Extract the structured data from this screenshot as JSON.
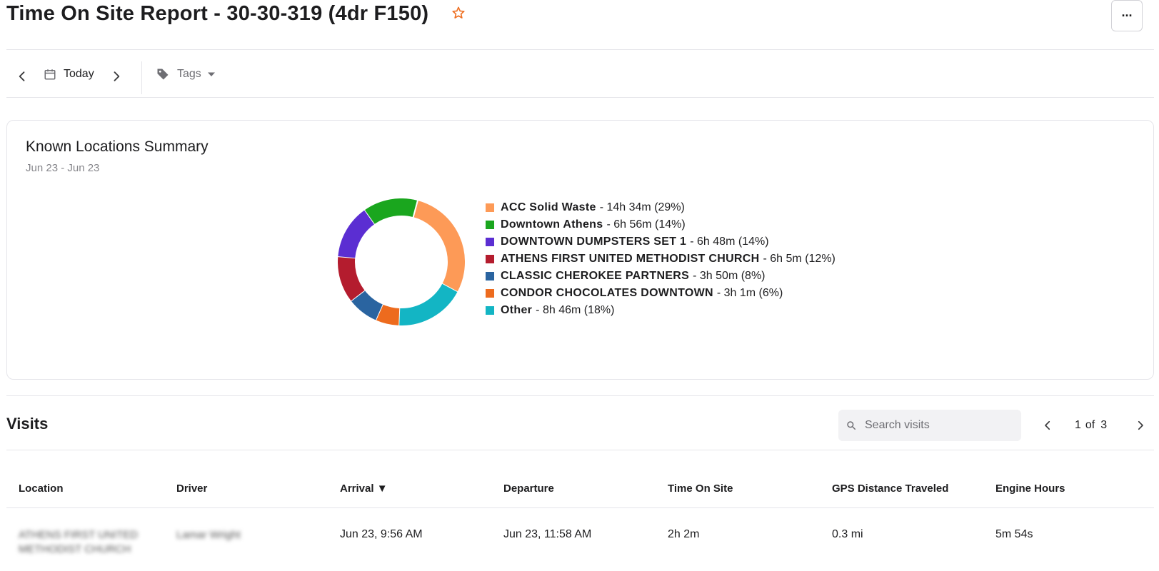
{
  "header": {
    "title": "Time On Site Report - 30-30-319 (4dr F150)",
    "more_label": "···"
  },
  "toolbar": {
    "date_label": "Today",
    "tags_label": "Tags"
  },
  "summary": {
    "title": "Known Locations Summary",
    "subtitle": "Jun 23 - Jun 23"
  },
  "chart_data": {
    "type": "pie",
    "title": "Known Locations Summary",
    "subtitle": "Jun 23 - Jun 23",
    "slices": [
      {
        "name": "ACC Solid Waste",
        "label": "- 14h 34m (29%)",
        "percent": 29,
        "color": "#fd9a57"
      },
      {
        "name": "Other",
        "label": "- 8h 46m (18%)",
        "percent": 18,
        "color": "#13b5c4"
      },
      {
        "name": "CONDOR CHOCOLATES DOWNTOWN",
        "label": "- 3h 1m (6%)",
        "percent": 6,
        "color": "#ed6b1e"
      },
      {
        "name": "CLASSIC CHEROKEE PARTNERS",
        "label": "- 3h 50m (8%)",
        "percent": 8,
        "color": "#2a64a0"
      },
      {
        "name": "ATHENS FIRST UNITED METHODIST CHURCH",
        "label": "- 6h 5m (12%)",
        "percent": 12,
        "color": "#b41c2e"
      },
      {
        "name": "DOWNTOWN DUMPSTERS SET 1",
        "label": "- 6h 48m (14%)",
        "percent": 14,
        "color": "#5b2ed2"
      },
      {
        "name": "Downtown Athens",
        "label": "- 6h 56m (14%)",
        "percent": 14,
        "color": "#1aa61e"
      }
    ],
    "legend": [
      {
        "name": "ACC Solid Waste",
        "value": "- 14h 34m (29%)",
        "color": "#fd9a57"
      },
      {
        "name": "Downtown Athens",
        "value": "- 6h 56m (14%)",
        "color": "#1aa61e"
      },
      {
        "name": "DOWNTOWN DUMPSTERS SET 1",
        "value": "- 6h 48m (14%)",
        "color": "#5b2ed2"
      },
      {
        "name": "ATHENS FIRST UNITED METHODIST CHURCH",
        "value": "- 6h 5m (12%)",
        "color": "#b41c2e"
      },
      {
        "name": "CLASSIC CHEROKEE PARTNERS",
        "value": "- 3h 50m (8%)",
        "color": "#2a64a0"
      },
      {
        "name": "CONDOR CHOCOLATES DOWNTOWN",
        "value": "- 3h 1m (6%)",
        "color": "#ed6b1e"
      },
      {
        "name": "Other",
        "value": "- 8h 46m (18%)",
        "color": "#13b5c4"
      }
    ],
    "legend_position": "right"
  },
  "visits": {
    "title": "Visits",
    "search_placeholder": "Search visits",
    "page_current": "1",
    "page_of": "of",
    "page_total": "3",
    "columns": [
      "Location",
      "Driver",
      "Arrival ▼",
      "Departure",
      "Time On Site",
      "GPS Distance Traveled",
      "Engine Hours"
    ],
    "rows": [
      {
        "location": "ATHENS FIRST UNITED METHODIST CHURCH",
        "driver": "Lamar Wright",
        "arrival": "Jun 23, 9:56 AM",
        "departure": "Jun 23, 11:58 AM",
        "time_on_site": "2h 2m",
        "gps_distance": "0.3 mi",
        "engine_hours": "5m 54s"
      }
    ]
  },
  "colors": {
    "accent_star": "#ee7125",
    "icon_gray": "#6e6e73"
  }
}
